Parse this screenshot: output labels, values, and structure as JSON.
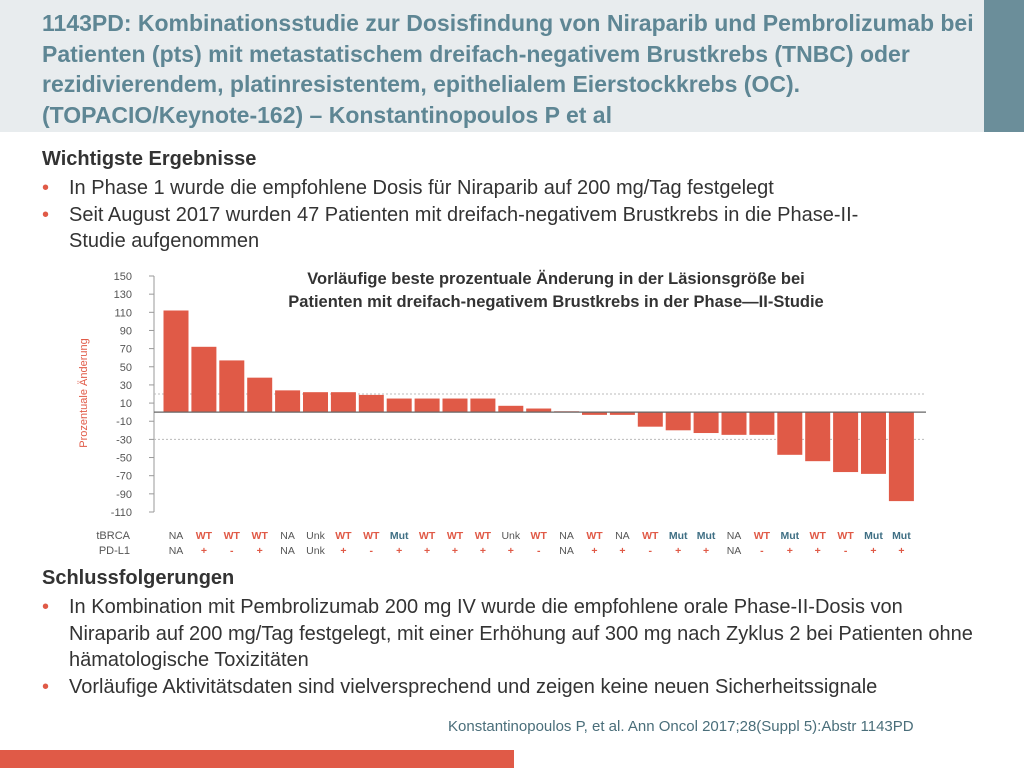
{
  "title": "1143PD: Kombinationsstudie zur Dosisfindung von Niraparib und Pembrolizumab bei Patienten (pts) mit metastatischem dreifach-negativem Brustkrebs (TNBC) oder rezidivierendem, platinresistentem, epithelialem Eierstockkrebs (OC). (TOPACIO/Keynote-162) – Konstantinopoulos P et al",
  "results": {
    "heading": "Wichtigste Ergebnisse",
    "bullets": [
      "In Phase 1 wurde die empfohlene Dosis für Niraparib auf 200 mg/Tag festgelegt",
      "Seit August 2017 wurden 47 Patienten mit dreifach-negativem Brustkrebs in die Phase-II-Studie aufgenommen"
    ]
  },
  "conclusions": {
    "heading": "Schlussfolgerungen",
    "bullets": [
      "In Kombination mit Pembrolizumab 200 mg IV wurde die empfohlene orale Phase-II-Dosis von Niraparib auf 200 mg/Tag festgelegt, mit einer Erhöhung auf 300 mg nach Zyklus 2 bei Patienten ohne hämatologische Toxizitäten",
      "Vorläufige Aktivitätsdaten sind vielversprechend und zeigen keine neuen Sicherheitssignale"
    ]
  },
  "citation": "Konstantinopoulos P, et al. Ann Oncol 2017;28(Suppl 5):Abstr 1143PD",
  "colors": {
    "accent": "#e05a47",
    "title": "#5e8694",
    "label_blue": "#3f6f84",
    "label_red": "#e05a47"
  },
  "chart_data": {
    "type": "bar",
    "title": "Vorläufige beste prozentuale Änderung in der Läsionsgröße bei Patienten mit dreifach-negativem Brustkrebs in der Phase—II-Studie",
    "ylabel": "Prozentuale Änderung",
    "ylim": [
      -110,
      150
    ],
    "yticks": [
      150,
      130,
      110,
      90,
      70,
      50,
      30,
      10,
      -10,
      -30,
      -50,
      -70,
      -90,
      -110
    ],
    "reference_lines": [
      20,
      -30
    ],
    "grid": false,
    "bar_color": "#e05a47",
    "values": [
      112,
      72,
      57,
      38,
      24,
      22,
      22,
      19,
      15,
      15,
      15,
      15,
      7,
      4,
      1,
      -3,
      -3,
      -16,
      -20,
      -23,
      -25,
      -25,
      -47,
      -54,
      -66,
      -68,
      -98
    ],
    "row_labels": [
      "tBRCA",
      "PD-L1"
    ],
    "tbrca": [
      "NA",
      "WT",
      "WT",
      "WT",
      "NA",
      "Unk",
      "WT",
      "WT",
      "Mut",
      "WT",
      "WT",
      "WT",
      "Unk",
      "WT",
      "NA",
      "WT",
      "NA",
      "WT",
      "Mut",
      "Mut",
      "NA",
      "WT",
      "Mut",
      "WT",
      "WT",
      "Mut",
      "Mut"
    ],
    "pdl1": [
      "NA",
      "+",
      "-",
      "+",
      "NA",
      "Unk",
      "+",
      "-",
      "+",
      "+",
      "+",
      "+",
      "+",
      "-",
      "NA",
      "+",
      "+",
      "-",
      "+",
      "+",
      "NA",
      "-",
      "+",
      "+",
      "-",
      "+",
      "+"
    ]
  }
}
